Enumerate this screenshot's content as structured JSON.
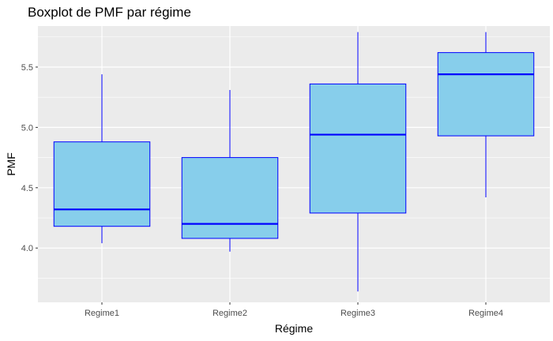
{
  "chart_data": {
    "type": "boxplot",
    "title": "Boxplot de PMF par régime",
    "xlabel": "Régime",
    "ylabel": "PMF",
    "categories": [
      "Regime1",
      "Regime2",
      "Regime3",
      "Regime4"
    ],
    "boxes": [
      {
        "category": "Regime1",
        "whisker_low": 4.04,
        "q1": 4.18,
        "median": 4.32,
        "q3": 4.88,
        "whisker_high": 5.44
      },
      {
        "category": "Regime2",
        "whisker_low": 3.97,
        "q1": 4.08,
        "median": 4.2,
        "q3": 4.75,
        "whisker_high": 5.31
      },
      {
        "category": "Regime3",
        "whisker_low": 3.64,
        "q1": 4.29,
        "median": 4.94,
        "q3": 5.36,
        "whisker_high": 5.79
      },
      {
        "category": "Regime4",
        "whisker_low": 4.42,
        "q1": 4.93,
        "median": 5.44,
        "q3": 5.62,
        "whisker_high": 5.79
      }
    ],
    "y_ticks": [
      "4.0",
      "4.5",
      "5.0",
      "5.5"
    ],
    "ylim": [
      3.55,
      5.84
    ],
    "grid": true,
    "colors": {
      "box_fill": "#87ceeb",
      "box_outline": "#0000ff",
      "panel_background": "#ebebeb",
      "grid": "#ffffff"
    }
  }
}
